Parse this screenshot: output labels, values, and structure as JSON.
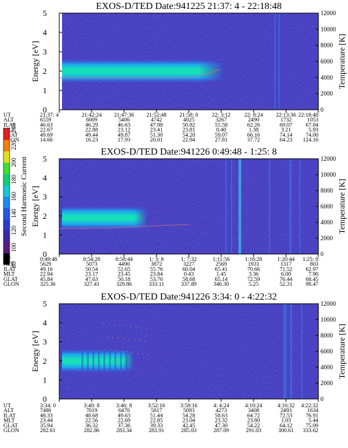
{
  "chart_data": [
    {
      "type": "heatmap",
      "title": "EXOS-D/TED  Date:941225  21:37: 4 - 22:18:48",
      "ylabel": "Energy [eV]",
      "y2label": "Temperature [K]",
      "ylim": [
        0,
        5
      ],
      "y2lim": [
        0,
        12000
      ],
      "yticks": [
        "0",
        "1",
        "2",
        "3",
        "4",
        "5"
      ],
      "y2ticks": [
        "0",
        "2000",
        "4000",
        "6000",
        "8000",
        "10000",
        "12000"
      ],
      "row_labels": [
        "UT",
        "ALT",
        "ILAT",
        "MLT",
        "GLAT",
        "GLON"
      ],
      "columns": [
        [
          "21:37: 4",
          "6559",
          "46.63",
          "22.67",
          "49.69",
          "14.66"
        ],
        [
          "21:42:24",
          "6009",
          "46.29",
          "22.88",
          "49.44",
          "16.23"
        ],
        [
          "21:47:36",
          "5406",
          "46.63",
          "23.12",
          "49.87",
          "17.93"
        ],
        [
          "21:52:48",
          "4742",
          "47.98",
          "23.41",
          "51.30",
          "20.01"
        ],
        [
          "21:58: 0",
          "4025",
          "50.82",
          "23.81",
          "54.20",
          "22.94"
        ],
        [
          "22: 3:12",
          "3267",
          "55.58",
          "0.40",
          "59.07",
          "27.81"
        ],
        [
          "22: 8:24",
          "2490",
          "62.26",
          "1.38",
          "66.16",
          "37.72"
        ],
        [
          "22:13:36",
          "1732",
          "69.07",
          "3.21",
          "74.14",
          "64.23"
        ],
        [
          "22:18:48",
          "1053",
          "67.84",
          "5.93",
          "74.00",
          "124.16"
        ]
      ],
      "band_center_ev": 2.0,
      "temperature_k": [
        [
          0,
          3950
        ],
        [
          0.4,
          3950
        ],
        [
          0.5,
          4000
        ],
        [
          0.55,
          4300
        ],
        [
          0.62,
          5000
        ]
      ]
    },
    {
      "type": "heatmap",
      "title": "EXOS-D/TED   Date:941226  0:49:48 - 1:25: 8",
      "ylabel": "Energy [eV]",
      "y2label": "Temperature [K]",
      "ylim": [
        0,
        5
      ],
      "y2lim": [
        0,
        12000
      ],
      "yticks": [
        "0",
        "1",
        "2",
        "3",
        "4",
        "5"
      ],
      "y2ticks": [
        "0",
        "2000",
        "4000",
        "6000",
        "8000",
        "10000",
        "12000"
      ],
      "row_labels": [
        "UT",
        "ALT",
        "ILAT",
        "MLT",
        "GLAT",
        "GLON"
      ],
      "columns": [
        [
          "0:49:48",
          "5629",
          "49.16",
          "22.94",
          "45.84",
          "325.36"
        ],
        [
          "0:54:20",
          "5073",
          "50.54",
          "23.17",
          "47.63",
          "327.41"
        ],
        [
          "0:58:44",
          "4490",
          "52.65",
          "23.45",
          "50.18",
          "329.86"
        ],
        [
          "1: 3: 8",
          "3872",
          "55.76",
          "23.84",
          "53.76",
          "333.11"
        ],
        [
          "1: 7:32",
          "3227",
          "60.04",
          "0.43",
          "58.68",
          "337.89"
        ],
        [
          "1:11:56",
          "2569",
          "65.41",
          "1.45",
          "65.14",
          "346.30"
        ],
        [
          "1:16:20",
          "1931",
          "70.66",
          "3.36",
          "72.59",
          "5.25"
        ],
        [
          "1:20:44",
          "1317",
          "71.52",
          "6.00",
          "76.44",
          "52.31"
        ],
        [
          "1:25: 8",
          "803",
          "62.97",
          "7.90",
          "68.45",
          "98.47"
        ]
      ],
      "band_center_ev": 1.9,
      "temperature_k": [
        [
          0,
          3200
        ],
        [
          0.2,
          3300
        ],
        [
          0.4,
          3600
        ],
        [
          0.5,
          3700
        ]
      ]
    },
    {
      "type": "heatmap",
      "title": "EXOS-D/TED   Date:941226  3:34: 0 - 4:22:32",
      "ylabel": "Energy [eV]",
      "y2label": "Temperature [K]",
      "ylim": [
        0,
        5
      ],
      "y2lim": [
        0,
        12000
      ],
      "yticks": [
        "0",
        "1",
        "2",
        "3",
        "4",
        "5"
      ],
      "y2ticks": [
        "0",
        "2000",
        "4000",
        "6000",
        "8000",
        "10000",
        "12000"
      ],
      "row_labels": [
        "UT",
        "ALT",
        "ILAT",
        "MLT",
        "GLAT",
        "GLON"
      ],
      "columns": [
        [
          "3:34: 0",
          "7486",
          "48.33",
          "23.44",
          "35.94",
          "282.61"
        ],
        [
          "3:40: 8",
          "7019",
          "48.68",
          "22.56",
          "36.32",
          "282.86"
        ],
        [
          "3:46: 8",
          "6470",
          "49.63",
          "22.69",
          "37.36",
          "283.34"
        ],
        [
          "3:52:16",
          "5817",
          "51.44",
          "22.85",
          "39.33",
          "283.91"
        ],
        [
          "3:58:16",
          "5093",
          "54.28",
          "23.04",
          "42.45",
          "285.03"
        ],
        [
          "4: 4:24",
          "4273",
          "58.63",
          "23.32",
          "47.30",
          "287.09"
        ],
        [
          "4:10:24",
          "3408",
          "64.72",
          "23.80",
          "54.22",
          "291.03"
        ],
        [
          "4:16:32",
          "2493",
          "72.53",
          "1.03",
          "64.12",
          "300.61"
        ],
        [
          "4:22:32",
          "1634",
          "76.91",
          "5.44",
          "75.09",
          "333.62"
        ]
      ],
      "band_center_ev": 2.0,
      "temperature_k": []
    }
  ],
  "colorbar": {
    "label": "Second Harmonic Current",
    "ticks": [
      "80",
      "100",
      "120",
      "140",
      "160",
      "180",
      "200",
      "220",
      "240"
    ],
    "colors": [
      "#000000",
      "#5a1a7a",
      "#3a2aa0",
      "#2c3cc8",
      "#2456e6",
      "#1c8cf0",
      "#18c8d8",
      "#10d070",
      "#40e030",
      "#e0e020",
      "#f08010",
      "#e02020"
    ]
  },
  "colors": {
    "background": "#3a2fb4",
    "band_core": "#0fd8a0",
    "band_edge": "#20a8f0",
    "temperature_line": "#c87878"
  }
}
